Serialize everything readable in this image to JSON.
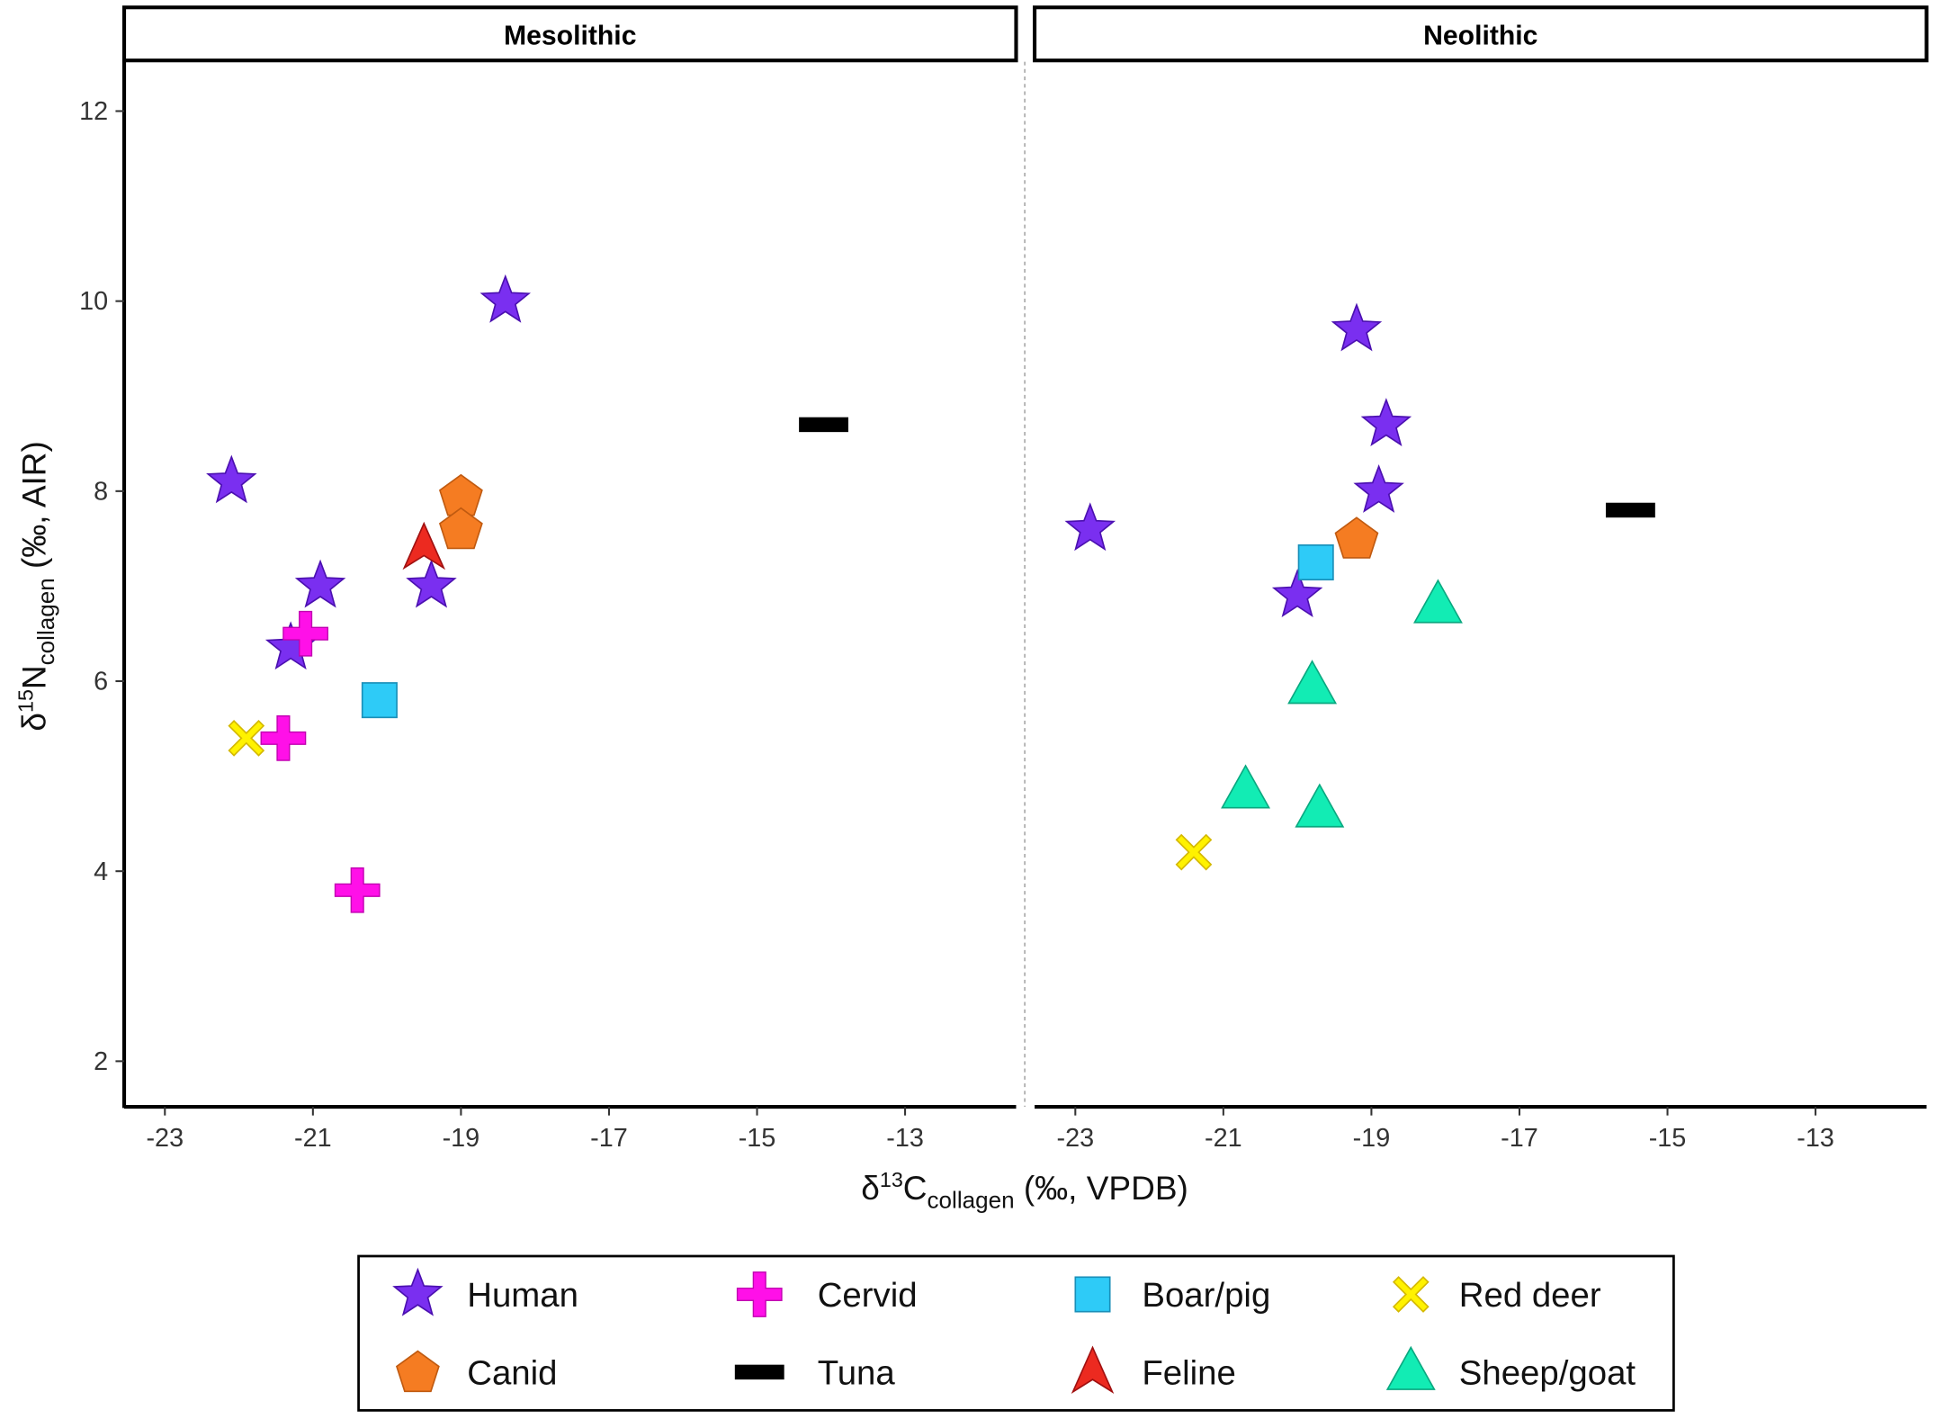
{
  "chart_data": {
    "type": "scatter",
    "xlabel": {
      "prefix": "δ",
      "sup": "13",
      "main": "C",
      "sub": "collagen",
      "suffix": " (‰, VPDB)"
    },
    "ylabel": {
      "prefix": "δ",
      "sup": "15",
      "main": "N",
      "sub": "collagen",
      "suffix": " (‰, AIR)"
    },
    "xlim": [
      -23.55,
      -11.5
    ],
    "ylim": [
      1.52,
      12.52
    ],
    "xticks": [
      -23,
      -21,
      -19,
      -17,
      -15,
      -13
    ],
    "yticks": [
      2,
      4,
      6,
      8,
      10,
      12
    ],
    "xtick_labels": [
      "-23",
      "-21",
      "-19",
      "-17",
      "-15",
      "-13"
    ],
    "ytick_labels": [
      "2",
      "4",
      "6",
      "8",
      "10",
      "12"
    ],
    "grid": false,
    "legend_position": "bottom",
    "panels": [
      {
        "title": "Mesolithic",
        "points": [
          {
            "group": "Human",
            "x": -22.1,
            "y": 8.1
          },
          {
            "group": "Human",
            "x": -18.4,
            "y": 10.0
          },
          {
            "group": "Human",
            "x": -20.9,
            "y": 7.0
          },
          {
            "group": "Human",
            "x": -19.4,
            "y": 7.0
          },
          {
            "group": "Human",
            "x": -21.3,
            "y": 6.35
          },
          {
            "group": "Cervid",
            "x": -21.1,
            "y": 6.5
          },
          {
            "group": "Cervid",
            "x": -21.4,
            "y": 5.4
          },
          {
            "group": "Cervid",
            "x": -20.4,
            "y": 3.8
          },
          {
            "group": "Boar/pig",
            "x": -20.1,
            "y": 5.8
          },
          {
            "group": "Red deer",
            "x": -21.9,
            "y": 5.4
          },
          {
            "group": "Canid",
            "x": -19.0,
            "y": 7.95
          },
          {
            "group": "Canid",
            "x": -19.0,
            "y": 7.6
          },
          {
            "group": "Feline",
            "x": -19.5,
            "y": 7.4
          },
          {
            "group": "Tuna",
            "x": -14.1,
            "y": 8.7
          }
        ]
      },
      {
        "title": "Neolithic",
        "points": [
          {
            "group": "Human",
            "x": -22.8,
            "y": 7.6
          },
          {
            "group": "Human",
            "x": -19.2,
            "y": 9.7
          },
          {
            "group": "Human",
            "x": -18.8,
            "y": 8.7
          },
          {
            "group": "Human",
            "x": -18.9,
            "y": 8.0
          },
          {
            "group": "Human",
            "x": -20.0,
            "y": 6.9
          },
          {
            "group": "Boar/pig",
            "x": -19.75,
            "y": 7.25
          },
          {
            "group": "Canid",
            "x": -19.2,
            "y": 7.5
          },
          {
            "group": "Sheep/goat",
            "x": -18.1,
            "y": 6.8
          },
          {
            "group": "Sheep/goat",
            "x": -19.8,
            "y": 5.95
          },
          {
            "group": "Sheep/goat",
            "x": -20.7,
            "y": 4.85
          },
          {
            "group": "Sheep/goat",
            "x": -19.7,
            "y": 4.65
          },
          {
            "group": "Red deer",
            "x": -21.4,
            "y": 4.2
          },
          {
            "group": "Tuna",
            "x": -15.5,
            "y": 7.8
          }
        ]
      }
    ],
    "legend": [
      {
        "label": "Human",
        "shape": "star",
        "color": "#7a2ff0",
        "stroke": "#4b10b0"
      },
      {
        "label": "Cervid",
        "shape": "plus",
        "color": "#ff10e8",
        "stroke": "#c000b0"
      },
      {
        "label": "Boar/pig",
        "shape": "square",
        "color": "#2ecbf7",
        "stroke": "#1a8fb8"
      },
      {
        "label": "Red deer",
        "shape": "cross",
        "color": "#fff200",
        "stroke": "#d4b800"
      },
      {
        "label": "Canid",
        "shape": "pentagon",
        "color": "#f57c22",
        "stroke": "#c05a10"
      },
      {
        "label": "Tuna",
        "shape": "bar",
        "color": "#000000",
        "stroke": "#000000"
      },
      {
        "label": "Feline",
        "shape": "arrow",
        "color": "#ec2a20",
        "stroke": "#a01010"
      },
      {
        "label": "Sheep/goat",
        "shape": "triangle",
        "color": "#12ecb4",
        "stroke": "#0aa880"
      }
    ]
  }
}
